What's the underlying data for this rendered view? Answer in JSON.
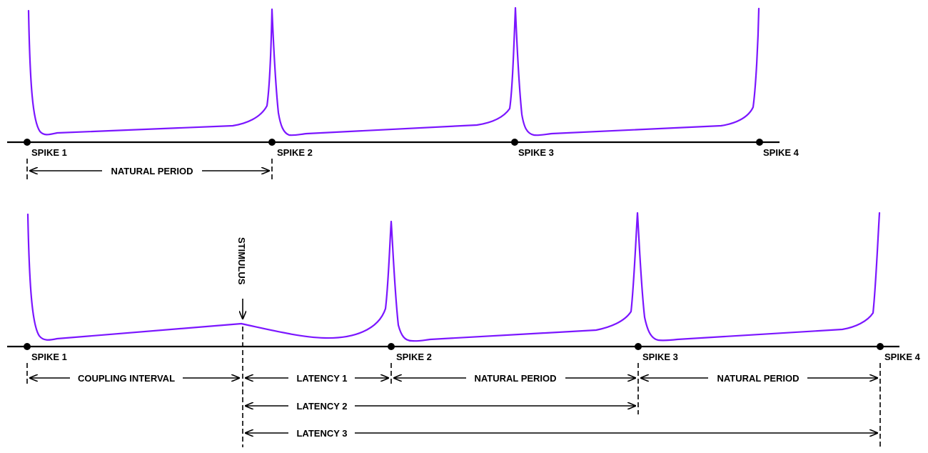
{
  "colors": {
    "trace": "#7b16ff",
    "axis": "#000000"
  },
  "top_panel": {
    "spike_labels": [
      "SPIKE 1",
      "SPIKE 2",
      "SPIKE 3",
      "SPIKE 4"
    ],
    "natural_period": "NATURAL PERIOD"
  },
  "bottom_panel": {
    "spike_labels": [
      "SPIKE 1",
      "SPIKE 2",
      "SPIKE 3",
      "SPIKE 4"
    ],
    "stimulus": "STIMULUS",
    "coupling_interval": "COUPLING INTERVAL",
    "latency_1": "LATENCY 1",
    "latency_2": "LATENCY 2",
    "latency_3": "LATENCY 3",
    "natural_period_1": "NATURAL PERIOD",
    "natural_period_2": "NATURAL PERIOD"
  }
}
